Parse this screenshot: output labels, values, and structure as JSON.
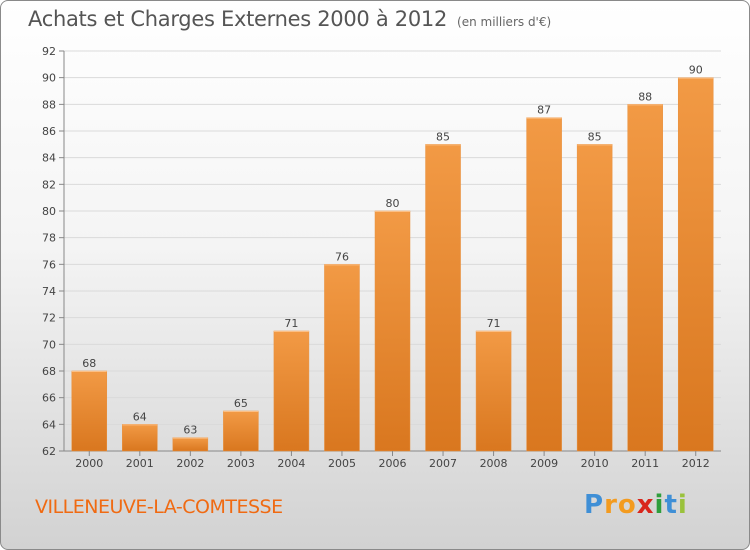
{
  "header": {
    "title": "Achats et Charges Externes 2000 à 2012",
    "subtitle": "(en milliers d'€)"
  },
  "footer": {
    "commune": "VILLENEUVE-LA-COMTESSE",
    "logo_text": "Proxiti",
    "logo_letters": [
      "P",
      "r",
      "o",
      "x",
      "i",
      "t",
      "i"
    ],
    "logo_colors": [
      "#3f8fd6",
      "#f39b1f",
      "#f39b1f",
      "#d9261c",
      "#2f9e3c",
      "#3f8fd6",
      "#9ac23c"
    ]
  },
  "colors": {
    "bar": "#f29a45",
    "bar_dark": "#d9771f",
    "accent": "#f06a12"
  },
  "chart_data": {
    "type": "bar",
    "title": "Achats et Charges Externes 2000 à 2012",
    "subtitle": "(en milliers d'€)",
    "categories": [
      "2000",
      "2001",
      "2002",
      "2003",
      "2004",
      "2005",
      "2006",
      "2007",
      "2008",
      "2009",
      "2010",
      "2011",
      "2012"
    ],
    "values": [
      68,
      64,
      63,
      65,
      71,
      76,
      80,
      85,
      71,
      87,
      85,
      88,
      90
    ],
    "ylim": [
      62,
      92
    ],
    "yticks": [
      62,
      64,
      66,
      68,
      70,
      72,
      74,
      76,
      78,
      80,
      82,
      84,
      86,
      88,
      90,
      92
    ],
    "grid": true,
    "legend": "none"
  }
}
